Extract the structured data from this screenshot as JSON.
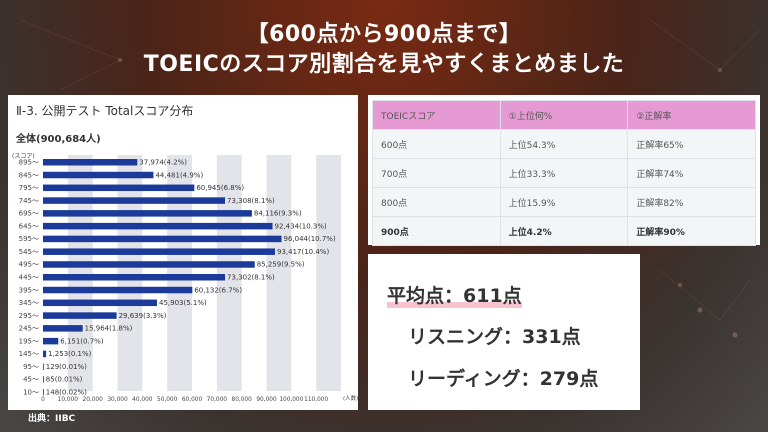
{
  "title": {
    "line1": "【600点から900点まで】",
    "line2": "TOEICのスコア別割合を見やすくまとめました"
  },
  "chart_data": {
    "type": "bar",
    "orientation": "horizontal",
    "title": "Ⅱ-3. 公開テスト Totalスコア分布",
    "subtitle": "全体(900,684人)",
    "ylabel": "(スコア)",
    "xlabel": "(人数)",
    "xlim": [
      0,
      120000
    ],
    "xticks": [
      "0",
      "10,000",
      "20,000",
      "30,000",
      "40,000",
      "50,000",
      "60,000",
      "70,000",
      "80,000",
      "90,000",
      "100,000",
      "110,000"
    ],
    "categories": [
      "895〜",
      "845〜",
      "795〜",
      "745〜",
      "695〜",
      "645〜",
      "595〜",
      "545〜",
      "495〜",
      "445〜",
      "395〜",
      "345〜",
      "295〜",
      "245〜",
      "195〜",
      "145〜",
      "95〜",
      "45〜",
      "10〜"
    ],
    "values": [
      37974,
      44481,
      60945,
      73308,
      84116,
      92434,
      96044,
      93417,
      85259,
      73302,
      60132,
      45903,
      29639,
      15964,
      6151,
      1253,
      129,
      85,
      148
    ],
    "labels": [
      "37,974(4.2%)",
      "44,481(4.9%)",
      "60,945(6.8%)",
      "73,308(8.1%)",
      "84,116(9.3%)",
      "92,434(10.3%)",
      "96,044(10.7%)",
      "93,417(10.4%)",
      "85,259(9.5%)",
      "73,302(8.1%)",
      "60,132(6.7%)",
      "45,903(5.1%)",
      "29,639(3.3%)",
      "15,964(1.8%)",
      "6,151(0.7%)",
      "1,253(0.1%)",
      "129(0.01%)",
      "85(0.01%)",
      "148(0.02%)"
    ],
    "bar_color": "#1b3a9a",
    "grid": "alternating bands"
  },
  "source": "出典：IIBC",
  "table": {
    "headers": [
      "TOEICスコア",
      "①上位何%",
      "②正解率"
    ],
    "rows": [
      [
        "600点",
        "上位54.3%",
        "正解率65%"
      ],
      [
        "700点",
        "上位33.3%",
        "正解率74%"
      ],
      [
        "800点",
        "上位15.9%",
        "正解率82%"
      ],
      [
        "900点",
        "上位4.2%",
        "正解率90%"
      ]
    ],
    "header_color": "#e59ad4"
  },
  "stats": {
    "average": "平均点：611点",
    "listening": "リスニング：331点",
    "reading": "リーディング：279点"
  }
}
